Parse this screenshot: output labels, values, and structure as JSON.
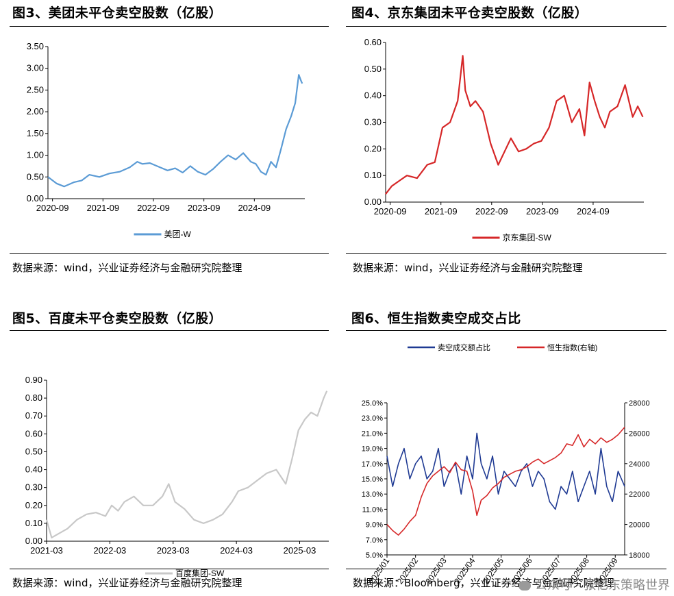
{
  "panels": [
    {
      "title": "图3、美团未平仓卖空股数（亿股）",
      "source": "数据来源：wind，兴业证券经济与金融研究院整理",
      "chart_data": {
        "type": "line",
        "ylim": [
          0,
          3.5
        ],
        "yticks": [
          "0.00",
          "0.50",
          "1.00",
          "1.50",
          "2.00",
          "2.50",
          "3.00",
          "3.50"
        ],
        "xrange": [
          2020.58,
          2025.67
        ],
        "xticks": [
          {
            "label": "2020-09",
            "x": 2020.67
          },
          {
            "label": "2021-09",
            "x": 2021.67
          },
          {
            "label": "2022-09",
            "x": 2022.67
          },
          {
            "label": "2023-09",
            "x": 2023.67
          },
          {
            "label": "2024-09",
            "x": 2024.67
          }
        ],
        "series": [
          {
            "name": "美团-W",
            "color": "#5b9bd5",
            "x": [
              2020.58,
              2020.75,
              2020.9,
              2021.1,
              2021.25,
              2021.4,
              2021.6,
              2021.8,
              2022.0,
              2022.2,
              2022.35,
              2022.45,
              2022.6,
              2022.8,
              2022.95,
              2023.1,
              2023.25,
              2023.4,
              2023.55,
              2023.7,
              2023.85,
              2024.0,
              2024.15,
              2024.3,
              2024.45,
              2024.6,
              2024.7,
              2024.8,
              2024.9,
              2025.0,
              2025.1,
              2025.2,
              2025.3,
              2025.4,
              2025.48,
              2025.55,
              2025.6,
              2025.62
            ],
            "values": [
              0.5,
              0.35,
              0.28,
              0.38,
              0.42,
              0.55,
              0.5,
              0.58,
              0.62,
              0.72,
              0.85,
              0.8,
              0.82,
              0.72,
              0.65,
              0.7,
              0.6,
              0.75,
              0.62,
              0.55,
              0.68,
              0.85,
              1.0,
              0.9,
              1.05,
              0.85,
              0.8,
              0.62,
              0.55,
              0.85,
              0.72,
              1.15,
              1.6,
              1.9,
              2.2,
              2.85,
              2.7,
              2.65
            ]
          }
        ]
      }
    },
    {
      "title": "图4、京东集团未平仓卖空股数（亿股）",
      "source": "数据来源：wind，兴业证券经济与金融研究院整理",
      "chart_data": {
        "type": "line",
        "ylim": [
          0,
          0.6
        ],
        "yticks": [
          "0.00",
          "0.10",
          "0.20",
          "0.30",
          "0.40",
          "0.50",
          "0.60"
        ],
        "xrange": [
          2020.58,
          2025.67
        ],
        "xticks": [
          {
            "label": "2020-09",
            "x": 2020.67
          },
          {
            "label": "2021-09",
            "x": 2021.67
          },
          {
            "label": "2022-09",
            "x": 2022.67
          },
          {
            "label": "2023-09",
            "x": 2023.67
          },
          {
            "label": "2024-09",
            "x": 2024.67
          }
        ],
        "series": [
          {
            "name": "京东集团-SW",
            "color": "#d62728",
            "x": [
              2020.58,
              2020.7,
              2020.85,
              2021.0,
              2021.2,
              2021.4,
              2021.55,
              2021.7,
              2021.85,
              2022.0,
              2022.1,
              2022.15,
              2022.25,
              2022.35,
              2022.5,
              2022.65,
              2022.8,
              2022.95,
              2023.05,
              2023.2,
              2023.35,
              2023.5,
              2023.65,
              2023.8,
              2023.95,
              2024.1,
              2024.25,
              2024.4,
              2024.5,
              2024.6,
              2024.7,
              2024.8,
              2024.9,
              2025.0,
              2025.15,
              2025.3,
              2025.45,
              2025.55,
              2025.65
            ],
            "values": [
              0.03,
              0.06,
              0.08,
              0.1,
              0.09,
              0.14,
              0.15,
              0.28,
              0.3,
              0.38,
              0.55,
              0.42,
              0.36,
              0.38,
              0.34,
              0.22,
              0.14,
              0.2,
              0.24,
              0.19,
              0.2,
              0.22,
              0.23,
              0.28,
              0.38,
              0.4,
              0.3,
              0.35,
              0.25,
              0.45,
              0.38,
              0.32,
              0.28,
              0.34,
              0.36,
              0.44,
              0.32,
              0.36,
              0.32
            ]
          }
        ]
      }
    },
    {
      "title": "图5、百度未平仓卖空股数（亿股）",
      "source": "数据来源：wind，兴业证券经济与金融研究院整理",
      "chart_data": {
        "type": "line",
        "ylim": [
          0,
          0.9
        ],
        "yticks": [
          "0.00",
          "0.10",
          "0.20",
          "0.30",
          "0.40",
          "0.50",
          "0.60",
          "0.70",
          "0.80",
          "0.90"
        ],
        "xrange": [
          2021.17,
          2025.63
        ],
        "xticks": [
          {
            "label": "2021-03",
            "x": 2021.17
          },
          {
            "label": "2022-03",
            "x": 2022.17
          },
          {
            "label": "2023-03",
            "x": 2023.17
          },
          {
            "label": "2024-03",
            "x": 2024.17
          },
          {
            "label": "2025-03",
            "x": 2025.17
          }
        ],
        "series": [
          {
            "name": "百度集团-SW",
            "color": "#c8c8c8",
            "x": [
              2021.17,
              2021.25,
              2021.35,
              2021.5,
              2021.65,
              2021.8,
              2021.95,
              2022.1,
              2022.2,
              2022.3,
              2022.4,
              2022.55,
              2022.7,
              2022.85,
              2023.0,
              2023.1,
              2023.2,
              2023.35,
              2023.5,
              2023.65,
              2023.8,
              2023.95,
              2024.1,
              2024.2,
              2024.35,
              2024.5,
              2024.65,
              2024.8,
              2024.95,
              2025.05,
              2025.15,
              2025.25,
              2025.35,
              2025.45,
              2025.55,
              2025.6
            ],
            "values": [
              0.12,
              0.02,
              0.04,
              0.07,
              0.12,
              0.15,
              0.16,
              0.14,
              0.2,
              0.17,
              0.22,
              0.25,
              0.2,
              0.2,
              0.25,
              0.32,
              0.22,
              0.18,
              0.12,
              0.1,
              0.12,
              0.15,
              0.22,
              0.28,
              0.3,
              0.34,
              0.38,
              0.4,
              0.32,
              0.46,
              0.62,
              0.68,
              0.72,
              0.7,
              0.8,
              0.84
            ]
          }
        ]
      }
    },
    {
      "title": "图6、恒生指数卖空成交占比",
      "source": "数据来源：Bloomberg，兴业证券经济与金融研究院整理",
      "chart_data": {
        "type": "line",
        "ylim": [
          0.05,
          0.25
        ],
        "yticks": [
          "5.0%",
          "7.0%",
          "9.0%",
          "11.0%",
          "13.0%",
          "15.0%",
          "17.0%",
          "19.0%",
          "21.0%",
          "23.0%",
          "25.0%"
        ],
        "y2lim": [
          18000,
          28000
        ],
        "y2ticks": [
          "18000",
          "20000",
          "22000",
          "24000",
          "26000",
          "28000"
        ],
        "xrange": [
          1,
          9.33
        ],
        "xticks": [
          {
            "label": "2025/01",
            "x": 1
          },
          {
            "label": "2025/02",
            "x": 2
          },
          {
            "label": "2025/03",
            "x": 3
          },
          {
            "label": "2025/04",
            "x": 4
          },
          {
            "label": "2025/05",
            "x": 5
          },
          {
            "label": "2025/06",
            "x": 6
          },
          {
            "label": "2025/07",
            "x": 7
          },
          {
            "label": "2025/08",
            "x": 8
          },
          {
            "label": "2025/09",
            "x": 9
          }
        ],
        "series": [
          {
            "name": "卖空成交额占比",
            "color": "#1f3a93",
            "axis": "left",
            "x": [
              1,
              1.2,
              1.4,
              1.6,
              1.8,
              2.0,
              2.2,
              2.4,
              2.6,
              2.8,
              3.0,
              3.2,
              3.4,
              3.6,
              3.8,
              4.0,
              4.15,
              4.3,
              4.5,
              4.7,
              4.9,
              5.1,
              5.3,
              5.5,
              5.7,
              5.9,
              6.1,
              6.3,
              6.5,
              6.7,
              6.9,
              7.1,
              7.3,
              7.5,
              7.7,
              7.9,
              8.1,
              8.3,
              8.5,
              8.7,
              8.9,
              9.1,
              9.33
            ],
            "values": [
              0.18,
              0.14,
              0.17,
              0.19,
              0.15,
              0.17,
              0.18,
              0.15,
              0.16,
              0.19,
              0.14,
              0.16,
              0.17,
              0.13,
              0.18,
              0.15,
              0.21,
              0.17,
              0.15,
              0.18,
              0.13,
              0.16,
              0.15,
              0.14,
              0.16,
              0.17,
              0.14,
              0.16,
              0.15,
              0.12,
              0.11,
              0.14,
              0.13,
              0.16,
              0.12,
              0.14,
              0.16,
              0.13,
              0.19,
              0.14,
              0.12,
              0.16,
              0.14
            ]
          },
          {
            "name": "恒生指数(右轴)",
            "color": "#d62728",
            "axis": "right",
            "x": [
              1,
              1.2,
              1.4,
              1.6,
              1.8,
              2.0,
              2.2,
              2.4,
              2.6,
              2.8,
              3.0,
              3.2,
              3.4,
              3.6,
              3.8,
              4.0,
              4.15,
              4.3,
              4.5,
              4.7,
              4.9,
              5.1,
              5.3,
              5.5,
              5.7,
              5.9,
              6.1,
              6.3,
              6.5,
              6.7,
              6.9,
              7.1,
              7.3,
              7.5,
              7.7,
              7.9,
              8.1,
              8.3,
              8.5,
              8.7,
              8.9,
              9.1,
              9.33
            ],
            "values": [
              20000,
              19600,
              19300,
              19700,
              20200,
              20600,
              21800,
              22700,
              23200,
              23500,
              23800,
              23400,
              24100,
              23600,
              23500,
              22200,
              20600,
              21600,
              21900,
              22400,
              22700,
              23100,
              23300,
              23500,
              23600,
              23800,
              24100,
              24300,
              24000,
              24200,
              24400,
              24700,
              25300,
              25200,
              25900,
              25100,
              25600,
              25300,
              25700,
              25400,
              25600,
              25900,
              26400
            ]
          }
        ]
      }
    }
  ],
  "watermark": {
    "text": "公众号 · 张忆东策略世界"
  }
}
